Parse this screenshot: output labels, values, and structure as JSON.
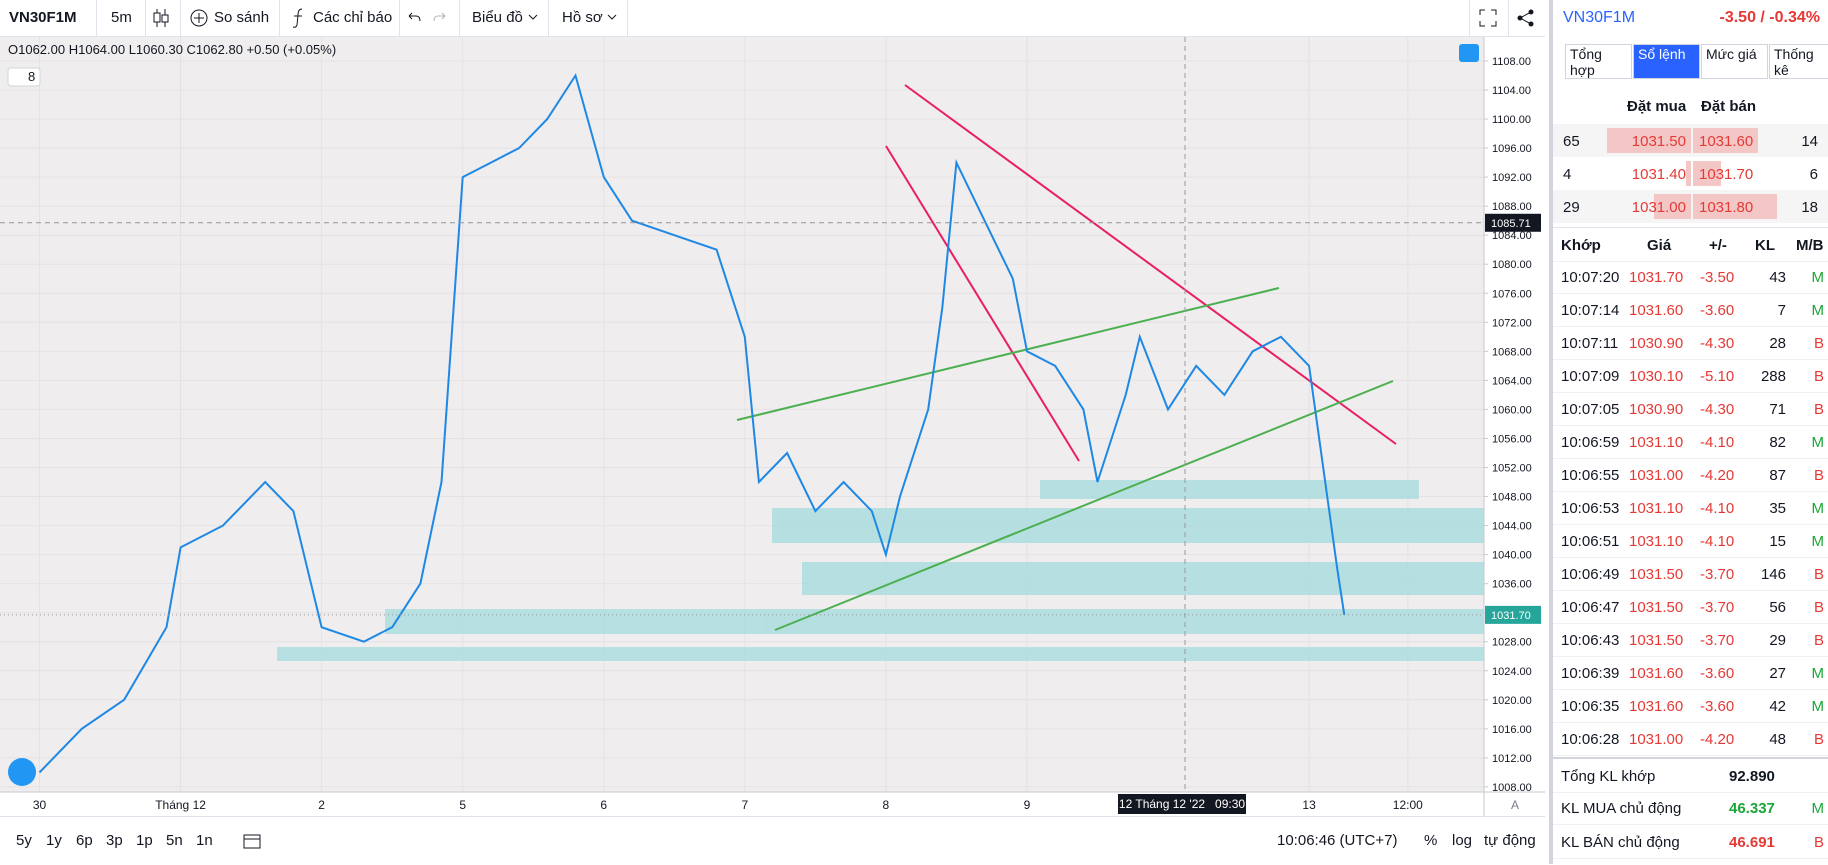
{
  "toolbar": {
    "symbol": "VN30F1M",
    "interval": "5m",
    "compare": "So sánh",
    "indicators": "Các chỉ báo",
    "chart_menu": "Biểu đồ",
    "profile": "Hồ sơ"
  },
  "chart_data": {
    "type": "line",
    "ohlc": "O1062.00 H1064.00 L1060.30 C1062.80 +0.50 (+0.05%)",
    "indicator_count": "8",
    "x": [
      0.0,
      0.3,
      0.6,
      0.9,
      1.0,
      1.3,
      1.6,
      1.8,
      2.0,
      2.3,
      2.5,
      2.7,
      2.85,
      3.0,
      3.2,
      3.4,
      3.6,
      3.8,
      4.0,
      4.2,
      4.5,
      4.8,
      5.0,
      5.1,
      5.3,
      5.5,
      5.7,
      5.9,
      6.0,
      6.1,
      6.3,
      6.4,
      6.5,
      6.7,
      6.9,
      7.0,
      7.2,
      7.4,
      7.5,
      7.7,
      7.8,
      8.0,
      8.2,
      8.4,
      8.6,
      8.8,
      9.0,
      9.1,
      9.2,
      9.25
    ],
    "series": [
      {
        "name": "VN30F1M",
        "color": "#1e88e5",
        "values": [
          1010,
          1016,
          1020,
          1030,
          1041,
          1044,
          1050,
          1046,
          1030,
          1028,
          1030,
          1036,
          1050,
          1092,
          1094,
          1096,
          1100,
          1106,
          1092,
          1086,
          1084,
          1082,
          1070,
          1050,
          1054,
          1046,
          1050,
          1046,
          1040,
          1048,
          1060,
          1074,
          1094,
          1086,
          1078,
          1068,
          1066,
          1060,
          1050,
          1062,
          1070,
          1060,
          1066,
          1062,
          1068,
          1070,
          1066,
          1052,
          1038,
          1031.7
        ]
      }
    ],
    "xlim": [
      -0.28,
      10.24
    ],
    "xticks": [
      {
        "value": 0,
        "label": "30"
      },
      {
        "value": 1,
        "label": "Tháng 12"
      },
      {
        "value": 2,
        "label": "2"
      },
      {
        "value": 3,
        "label": "5"
      },
      {
        "value": 4,
        "label": "6"
      },
      {
        "value": 5,
        "label": "7"
      },
      {
        "value": 6,
        "label": "8"
      },
      {
        "value": 7,
        "label": "9"
      },
      {
        "value": 9,
        "label": "13"
      },
      {
        "value": 9.7,
        "label": "12:00"
      }
    ],
    "ylim": [
      1007.3,
      1111.3
    ],
    "yticks": [
      {
        "value": 1008,
        "label": "1008.00"
      },
      {
        "value": 1012,
        "label": "1012.00"
      },
      {
        "value": 1016,
        "label": "1016.00"
      },
      {
        "value": 1020,
        "label": "1020.00"
      },
      {
        "value": 1024,
        "label": "1024.00"
      },
      {
        "value": 1028,
        "label": "1028.00"
      },
      {
        "value": 1032,
        "label": "1032.00"
      },
      {
        "value": 1036,
        "label": "1036.00"
      },
      {
        "value": 1040,
        "label": "1040.00"
      },
      {
        "value": 1044,
        "label": "1044.00"
      },
      {
        "value": 1048,
        "label": "1048.00"
      },
      {
        "value": 1052,
        "label": "1052.00"
      },
      {
        "value": 1056,
        "label": "1056.00"
      },
      {
        "value": 1060,
        "label": "1060.00"
      },
      {
        "value": 1064,
        "label": "1064.00"
      },
      {
        "value": 1068,
        "label": "1068.00"
      },
      {
        "value": 1072,
        "label": "1072.00"
      },
      {
        "value": 1076,
        "label": "1076.00"
      },
      {
        "value": 1080,
        "label": "1080.00"
      },
      {
        "value": 1084,
        "label": "1084.00"
      },
      {
        "value": 1088,
        "label": "1088.00"
      },
      {
        "value": 1092,
        "label": "1092.00"
      },
      {
        "value": 1096,
        "label": "1096.00"
      },
      {
        "value": 1100,
        "label": "1100.00"
      },
      {
        "value": 1104,
        "label": "1104.00"
      },
      {
        "value": 1108,
        "label": "1108.00"
      }
    ],
    "crosshair_price": {
      "value": 1085.71,
      "label": "1085.71"
    },
    "last_price": {
      "value": 1031.7,
      "label": "1031.70"
    },
    "crosshair_time": "12 Tháng 12 '22   09:30",
    "scale_mode": "A"
  },
  "bottom": {
    "ranges": [
      "5y",
      "1y",
      "6p",
      "3p",
      "1p",
      "5n",
      "1n"
    ],
    "clock": "10:06:46 (UTC+7)",
    "percent": "%",
    "log": "log",
    "auto": "tự động"
  },
  "panel": {
    "symbol": "VN30F1M",
    "change": "-3.50 / -0.34%",
    "tabs": [
      "Tổng hợp",
      "Sổ lệnh",
      "Mức giá",
      "Thống kê"
    ],
    "book_headers": [
      "Đặt mua",
      "Đặt bán"
    ],
    "bid_volumes": [
      65,
      4,
      29
    ],
    "bids": [
      "1031.50",
      "1031.40",
      "1031.00"
    ],
    "asks": [
      "1031.60",
      "1031.70",
      "1031.80"
    ],
    "ask_volumes": [
      14,
      6,
      18
    ],
    "trade_headers": [
      "Khớp",
      "Giá",
      "+/-",
      "KL",
      "M/B"
    ],
    "side_colors": {
      "M": "#19a637",
      "B": "#e53935"
    },
    "trades": [
      [
        "10:07:20",
        "1031.70",
        "-3.50",
        "43",
        "M"
      ],
      [
        "10:07:14",
        "1031.60",
        "-3.60",
        "7",
        "M"
      ],
      [
        "10:07:11",
        "1030.90",
        "-4.30",
        "28",
        "B"
      ],
      [
        "10:07:09",
        "1030.10",
        "-5.10",
        "288",
        "B"
      ],
      [
        "10:07:05",
        "1030.90",
        "-4.30",
        "71",
        "B"
      ],
      [
        "10:06:59",
        "1031.10",
        "-4.10",
        "82",
        "M"
      ],
      [
        "10:06:55",
        "1031.00",
        "-4.20",
        "87",
        "B"
      ],
      [
        "10:06:53",
        "1031.10",
        "-4.10",
        "35",
        "M"
      ],
      [
        "10:06:51",
        "1031.10",
        "-4.10",
        "15",
        "M"
      ],
      [
        "10:06:49",
        "1031.50",
        "-3.70",
        "146",
        "B"
      ],
      [
        "10:06:47",
        "1031.50",
        "-3.70",
        "56",
        "B"
      ],
      [
        "10:06:43",
        "1031.50",
        "-3.70",
        "29",
        "B"
      ],
      [
        "10:06:39",
        "1031.60",
        "-3.60",
        "27",
        "M"
      ],
      [
        "10:06:35",
        "1031.60",
        "-3.60",
        "42",
        "M"
      ],
      [
        "10:06:28",
        "1031.00",
        "-4.20",
        "48",
        "B"
      ]
    ],
    "summary": [
      [
        "Tổng KL khớp",
        "92.890"
      ],
      [
        "KL MUA chủ động",
        "46.337"
      ],
      [
        "KL BÁN chủ động",
        "46.691"
      ]
    ]
  }
}
